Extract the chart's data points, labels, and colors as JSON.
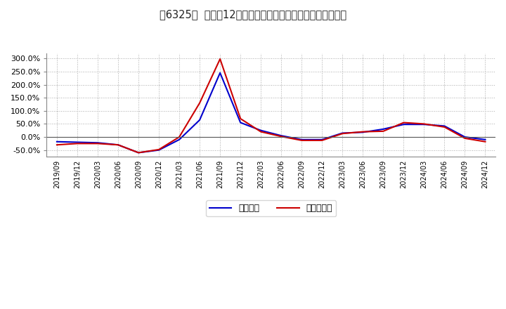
{
  "title_bracket": "[6325]",
  "title_text": "利益だ12か月移動合計の対前年同期増減率の推移",
  "x_labels": [
    "2019/09",
    "2019/12",
    "2020/03",
    "2020/06",
    "2020/09",
    "2020/12",
    "2021/03",
    "2021/06",
    "2021/09",
    "2021/12",
    "2022/03",
    "2022/06",
    "2022/09",
    "2022/12",
    "2023/03",
    "2023/06",
    "2023/09",
    "2023/12",
    "2024/03",
    "2024/06",
    "2024/09",
    "2024/12"
  ],
  "keijo_rieki": [
    -0.18,
    -0.2,
    -0.22,
    -0.3,
    -0.6,
    -0.5,
    -0.1,
    0.65,
    2.45,
    0.55,
    0.25,
    0.05,
    -0.1,
    -0.1,
    0.15,
    0.18,
    0.3,
    0.48,
    0.48,
    0.42,
    0.0,
    -0.1
  ],
  "toki_jun_rieki": [
    -0.3,
    -0.25,
    -0.25,
    -0.3,
    -0.6,
    -0.48,
    0.0,
    1.3,
    2.98,
    0.7,
    0.2,
    0.02,
    -0.13,
    -0.13,
    0.13,
    0.2,
    0.22,
    0.55,
    0.5,
    0.38,
    -0.05,
    -0.18
  ],
  "ylim": [
    -0.75,
    3.2
  ],
  "yticks": [
    -0.5,
    0.0,
    0.5,
    1.0,
    1.5,
    2.0,
    2.5,
    3.0
  ],
  "keijo_color": "#0000cc",
  "toki_color": "#cc0000",
  "background_color": "#ffffff",
  "plot_bg_color": "#ffffff",
  "grid_color": "#aaaaaa",
  "legend_keijo": "経常利益",
  "legend_toki": "当期純利益"
}
